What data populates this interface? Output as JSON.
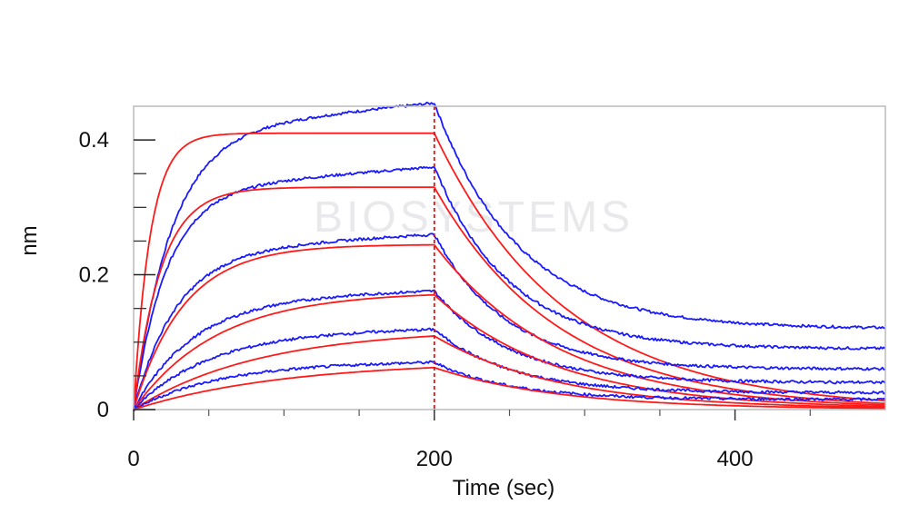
{
  "chart_data": {
    "type": "line",
    "title": "",
    "xlabel": "Time (sec)",
    "ylabel": "nm",
    "xlim": [
      0,
      500
    ],
    "ylim": [
      0,
      0.45
    ],
    "x_ticks": [
      0,
      200,
      400
    ],
    "x_tick_labels": [
      "0",
      "200",
      "400"
    ],
    "y_ticks": [
      0,
      0.2,
      0.4
    ],
    "y_tick_labels": [
      "0",
      "0.2",
      "0.4"
    ],
    "minor_x_ticks": [
      50,
      100,
      150,
      250,
      300,
      350,
      450
    ],
    "minor_y_ticks": [
      0.05,
      0.1,
      0.15,
      0.25,
      0.3,
      0.35
    ],
    "grid": false,
    "legend": "none",
    "association_end": 200,
    "dissociation_end": 500,
    "watermark": "BIOSYSTEMS",
    "colors": {
      "measured": "#1a1aff",
      "fit": "#ff1a1a",
      "divider": "#e01010",
      "frame": "#bbbbbb"
    },
    "series": [
      {
        "color": "#1a1aff",
        "measured": true,
        "assoc_plateau": 0.41,
        "assoc_k": 0.04,
        "assoc_drift": 0.045,
        "dissoc_k": 0.018,
        "dissoc_floor": 0.12
      },
      {
        "color": "#ff1a1a",
        "measured": false,
        "assoc_plateau": 0.41,
        "assoc_k": 0.09,
        "assoc_drift": 0.0,
        "dissoc_k": 0.0115,
        "dissoc_floor": 0.0
      },
      {
        "color": "#1a1aff",
        "measured": true,
        "assoc_plateau": 0.325,
        "assoc_k": 0.045,
        "assoc_drift": 0.035,
        "dissoc_k": 0.02,
        "dissoc_floor": 0.09
      },
      {
        "color": "#ff1a1a",
        "measured": false,
        "assoc_plateau": 0.33,
        "assoc_k": 0.055,
        "assoc_drift": 0.0,
        "dissoc_k": 0.012,
        "dissoc_floor": 0.0
      },
      {
        "color": "#1a1aff",
        "measured": true,
        "assoc_plateau": 0.235,
        "assoc_k": 0.035,
        "assoc_drift": 0.025,
        "dissoc_k": 0.021,
        "dissoc_floor": 0.06
      },
      {
        "color": "#ff1a1a",
        "measured": false,
        "assoc_plateau": 0.245,
        "assoc_k": 0.03,
        "assoc_drift": 0.0,
        "dissoc_k": 0.012,
        "dissoc_floor": 0.0
      },
      {
        "color": "#1a1aff",
        "measured": true,
        "assoc_plateau": 0.165,
        "assoc_k": 0.025,
        "assoc_drift": 0.012,
        "dissoc_k": 0.02,
        "dissoc_floor": 0.04
      },
      {
        "color": "#ff1a1a",
        "measured": false,
        "assoc_plateau": 0.175,
        "assoc_k": 0.018,
        "assoc_drift": 0.0,
        "dissoc_k": 0.012,
        "dissoc_floor": 0.0
      },
      {
        "color": "#1a1aff",
        "measured": true,
        "assoc_plateau": 0.115,
        "assoc_k": 0.02,
        "assoc_drift": 0.006,
        "dissoc_k": 0.02,
        "dissoc_floor": 0.025
      },
      {
        "color": "#ff1a1a",
        "measured": false,
        "assoc_plateau": 0.12,
        "assoc_k": 0.012,
        "assoc_drift": 0.0,
        "dissoc_k": 0.012,
        "dissoc_floor": 0.0
      },
      {
        "color": "#1a1aff",
        "measured": true,
        "assoc_plateau": 0.068,
        "assoc_k": 0.018,
        "assoc_drift": 0.004,
        "dissoc_k": 0.02,
        "dissoc_floor": 0.015
      },
      {
        "color": "#ff1a1a",
        "measured": false,
        "assoc_plateau": 0.072,
        "assoc_k": 0.01,
        "assoc_drift": 0.0,
        "dissoc_k": 0.012,
        "dissoc_floor": 0.0
      }
    ]
  }
}
